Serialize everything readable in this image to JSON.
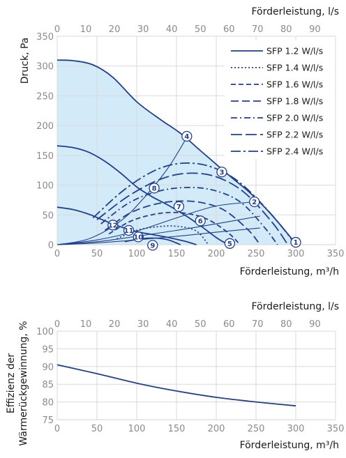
{
  "colors": {
    "curve": "#1f3f8f",
    "fill": "#d3ebf8",
    "grid": "#d9d9d9",
    "tick": "#8a8a8a",
    "text": "#1a1a1a"
  },
  "chart_data": [
    {
      "type": "line",
      "top_axis_label": "Förderleistung, l/s",
      "top_ticks": [
        0,
        10,
        20,
        30,
        40,
        50,
        60,
        70,
        80,
        90
      ],
      "xlabel": "Förderleistung, m³/h",
      "ylabel": "Druck, Pa",
      "xlim": [
        0,
        350
      ],
      "ylim": [
        0,
        350
      ],
      "x_ticks": [
        0,
        50,
        100,
        150,
        200,
        250,
        300,
        350
      ],
      "y_ticks": [
        0,
        50,
        100,
        150,
        200,
        250,
        300,
        350
      ],
      "grid": true,
      "legend_position": "top-right",
      "fan_curves": [
        {
          "id": "max",
          "x": [
            0,
            20,
            45,
            70,
            100,
            130,
            155,
            180,
            200,
            220,
            240,
            260,
            275,
            287,
            296,
            300
          ],
          "y": [
            310,
            309,
            302,
            281,
            240,
            210,
            187,
            158,
            135,
            112,
            90,
            64,
            42,
            23,
            8,
            0
          ]
        },
        {
          "id": "mid",
          "x": [
            0,
            20,
            40,
            60,
            80,
            100,
            120,
            140,
            160,
            180,
            200,
            215
          ],
          "y": [
            166,
            163,
            155,
            140,
            120,
            97,
            80,
            66,
            50,
            32,
            12,
            0
          ]
        },
        {
          "id": "low",
          "x": [
            0,
            20,
            40,
            60,
            80,
            100,
            120,
            140,
            160,
            175
          ],
          "y": [
            63,
            59,
            51,
            40,
            30,
            22,
            17,
            12,
            6,
            0
          ]
        }
      ],
      "system_curves": [
        {
          "id": "s1",
          "x": [
            0,
            40,
            80,
            110,
            140,
            165
          ],
          "y": [
            0,
            10,
            40,
            80,
            130,
            185
          ]
        },
        {
          "id": "s2",
          "x": [
            0,
            50,
            100,
            150,
            200,
            250
          ],
          "y": [
            0,
            8,
            23,
            45,
            65,
            72
          ]
        },
        {
          "id": "s3",
          "x": [
            0,
            50,
            100,
            150,
            200,
            255
          ],
          "y": [
            0,
            5,
            14,
            24,
            35,
            48
          ]
        },
        {
          "id": "s4",
          "x": [
            0,
            50,
            100,
            150,
            200,
            255
          ],
          "y": [
            0,
            3,
            8,
            14,
            21,
            28
          ]
        }
      ],
      "sfp_lines": [
        {
          "name": "SFP 1.2 W/l/s",
          "dash": "",
          "x": [
            85,
            105,
            125,
            140,
            155
          ],
          "y": [
            5,
            10,
            11,
            8,
            0
          ]
        },
        {
          "name": "SFP 1.4 W/l/s",
          "dash": "2 3",
          "x": [
            75,
            100,
            125,
            150,
            175,
            190
          ],
          "y": [
            10,
            24,
            30,
            31,
            23,
            0
          ]
        },
        {
          "name": "SFP 1.6 W/l/s",
          "dash": "7 4",
          "x": [
            65,
            90,
            115,
            140,
            165,
            190,
            215,
            230
          ],
          "y": [
            18,
            38,
            49,
            54,
            52,
            42,
            20,
            0
          ]
        },
        {
          "name": "SFP 1.8 W/l/s",
          "dash": "11 5",
          "x": [
            60,
            90,
            120,
            150,
            180,
            210,
            240,
            255
          ],
          "y": [
            24,
            52,
            67,
            73,
            71,
            58,
            25,
            0
          ]
        },
        {
          "name": "SFP 2.0 W/l/s",
          "dash": "9 4 2 4",
          "x": [
            55,
            90,
            125,
            160,
            195,
            230,
            260,
            277
          ],
          "y": [
            35,
            70,
            89,
            96,
            92,
            72,
            30,
            0
          ]
        },
        {
          "name": "SFP 2.2 W/l/s",
          "dash": "16 5",
          "x": [
            50,
            90,
            130,
            165,
            200,
            235,
            270,
            290
          ],
          "y": [
            42,
            82,
            110,
            120,
            114,
            88,
            38,
            0
          ]
        },
        {
          "name": "SFP 2.4 W/l/s",
          "dash": "14 4 3 4",
          "x": [
            45,
            85,
            125,
            160,
            195,
            230,
            270,
            300
          ],
          "y": [
            45,
            93,
            126,
            137,
            130,
            104,
            50,
            0
          ]
        }
      ],
      "markers": [
        {
          "label": "1",
          "x": 300,
          "y": 4
        },
        {
          "label": "2",
          "x": 248,
          "y": 72
        },
        {
          "label": "3",
          "x": 207,
          "y": 122
        },
        {
          "label": "4",
          "x": 163,
          "y": 182
        },
        {
          "label": "5",
          "x": 217,
          "y": 2
        },
        {
          "label": "6",
          "x": 180,
          "y": 40
        },
        {
          "label": "7",
          "x": 153,
          "y": 64
        },
        {
          "label": "8",
          "x": 122,
          "y": 95
        },
        {
          "label": "9",
          "x": 120,
          "y": -1
        },
        {
          "label": "10",
          "x": 102,
          "y": 13
        },
        {
          "label": "11",
          "x": 90,
          "y": 24
        },
        {
          "label": "12",
          "x": 70,
          "y": 33
        }
      ]
    },
    {
      "type": "line",
      "top_axis_label": "Förderleistung, l/s",
      "top_ticks": [
        0,
        10,
        20,
        30,
        40,
        50,
        60,
        70,
        80,
        90
      ],
      "xlabel": "Förderleistung, m³/h",
      "ylabel": "Effizienz der Wärmerückgewinnung, %",
      "ylabel_lines": [
        "Effizienz der",
        "Wärmerückgewinnung, %"
      ],
      "xlim": [
        0,
        350
      ],
      "ylim": [
        75,
        100
      ],
      "x_ticks": [
        0,
        50,
        100,
        150,
        200,
        250,
        300,
        350
      ],
      "y_ticks": [
        75,
        80,
        85,
        90,
        95,
        100
      ],
      "grid": true,
      "series": [
        {
          "x": [
            0,
            50,
            100,
            150,
            200,
            250,
            300
          ],
          "y": [
            90.5,
            88,
            85.3,
            83.1,
            81.3,
            80,
            78.9
          ]
        }
      ]
    }
  ]
}
